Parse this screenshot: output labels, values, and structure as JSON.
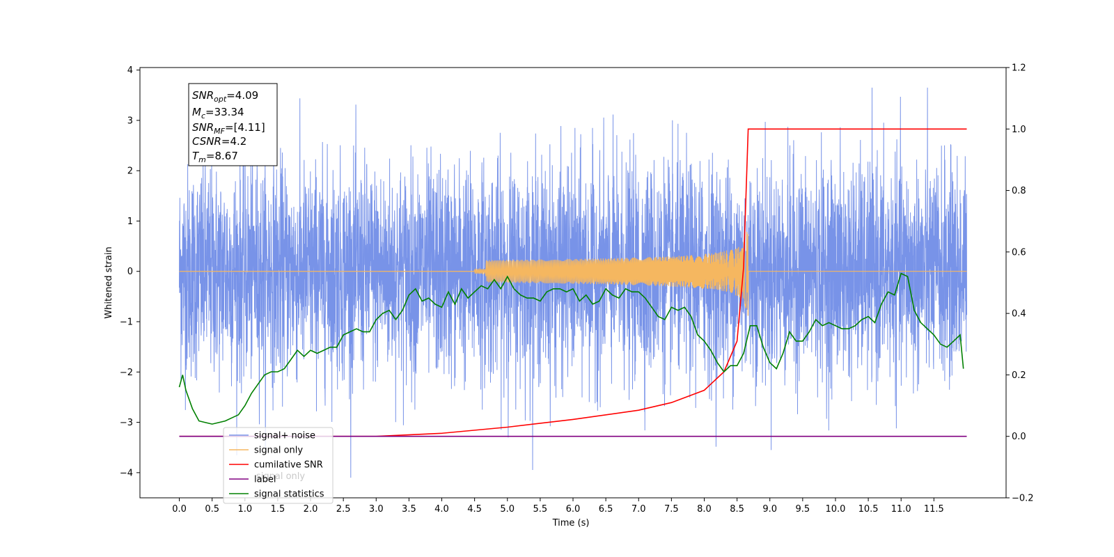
{
  "chart_data": {
    "type": "line",
    "xlabel": "Time (s)",
    "ylabel": "Whitened strain",
    "x_ticks": [
      "0.0",
      "0.5",
      "1.0",
      "1.5",
      "2.0",
      "2.5",
      "3.0",
      "3.5",
      "4.0",
      "4.5",
      "5.0",
      "5.5",
      "6.0",
      "6.5",
      "7.0",
      "7.5",
      "8.0",
      "8.5",
      "9.0",
      "9.5",
      "10.0",
      "10.5",
      "11.0",
      "11.5"
    ],
    "xlim": [
      -0.6,
      12.6
    ],
    "y_left_ticks": [
      "4",
      "3",
      "2",
      "1",
      "0",
      "−1",
      "−2",
      "−3",
      "−4"
    ],
    "ylim_left": [
      -4.5,
      4.05
    ],
    "y_right_ticks": [
      "1.2",
      "1.0",
      "0.8",
      "0.6",
      "0.4",
      "0.2",
      "0.0",
      "−0.2"
    ],
    "ylim_right": [
      -0.2,
      1.2
    ],
    "info_box": {
      "lines": [
        {
          "name": "SNR",
          "sub": "opt",
          "value": "=4.09"
        },
        {
          "name": "M",
          "sub": "c",
          "value": "=33.34"
        },
        {
          "name": "SNR",
          "sub": "MF",
          "value": "=[4.11]"
        },
        {
          "name": "CSNR",
          "sub": "",
          "value": "=4.2"
        },
        {
          "name": "T",
          "sub": "m",
          "value": "=8.67"
        }
      ]
    },
    "series": [
      {
        "name": "signal+ noise",
        "color": "#7893e8",
        "axis": "left",
        "noise_amplitude": 3.2,
        "x_range": [
          0,
          12
        ],
        "description": "dense noise trace"
      },
      {
        "name": "signal only",
        "color": "#f5b760",
        "axis": "left",
        "chirp_peak_time": 8.67,
        "chirp_peak_amplitude": 0.9
      },
      {
        "name": "cumilative SNR",
        "color": "#ff0000",
        "axis": "right",
        "x": [
          0.0,
          3.0,
          4.0,
          5.0,
          6.0,
          7.0,
          7.5,
          8.0,
          8.3,
          8.5,
          8.6,
          8.67,
          12.0
        ],
        "y": [
          0.0,
          0.0,
          0.01,
          0.03,
          0.055,
          0.085,
          0.11,
          0.15,
          0.21,
          0.31,
          0.55,
          1.0,
          1.0
        ]
      },
      {
        "name": "label",
        "color": "#800080",
        "axis": "right",
        "x": [
          0.0,
          12.0
        ],
        "y": [
          0.0,
          0.0
        ]
      },
      {
        "name": "signal statistics",
        "color": "#008000",
        "axis": "right",
        "x": [
          0.0,
          0.05,
          0.1,
          0.2,
          0.3,
          0.4,
          0.5,
          0.6,
          0.7,
          0.8,
          0.9,
          1.0,
          1.1,
          1.2,
          1.3,
          1.4,
          1.5,
          1.6,
          1.7,
          1.8,
          1.9,
          2.0,
          2.1,
          2.2,
          2.3,
          2.4,
          2.5,
          2.6,
          2.7,
          2.8,
          2.9,
          3.0,
          3.1,
          3.2,
          3.3,
          3.4,
          3.5,
          3.6,
          3.7,
          3.8,
          3.9,
          4.0,
          4.1,
          4.2,
          4.3,
          4.4,
          4.5,
          4.6,
          4.7,
          4.8,
          4.9,
          5.0,
          5.1,
          5.2,
          5.3,
          5.4,
          5.5,
          5.6,
          5.7,
          5.8,
          5.9,
          6.0,
          6.1,
          6.2,
          6.3,
          6.4,
          6.5,
          6.6,
          6.7,
          6.8,
          6.9,
          7.0,
          7.1,
          7.2,
          7.3,
          7.4,
          7.5,
          7.6,
          7.7,
          7.8,
          7.9,
          8.0,
          8.1,
          8.2,
          8.3,
          8.4,
          8.5,
          8.6,
          8.7,
          8.8,
          8.9,
          9.0,
          9.1,
          9.2,
          9.3,
          9.4,
          9.5,
          9.6,
          9.7,
          9.8,
          9.9,
          10.0,
          10.1,
          10.2,
          10.3,
          10.4,
          10.5,
          10.6,
          10.7,
          10.8,
          10.9,
          11.0,
          11.1,
          11.2,
          11.3,
          11.4,
          11.5,
          11.6,
          11.7,
          11.8,
          11.9,
          11.95
        ],
        "y": [
          0.16,
          0.2,
          0.15,
          0.09,
          0.05,
          0.045,
          0.04,
          0.045,
          0.05,
          0.06,
          0.07,
          0.1,
          0.14,
          0.17,
          0.2,
          0.21,
          0.21,
          0.22,
          0.25,
          0.28,
          0.26,
          0.28,
          0.27,
          0.28,
          0.29,
          0.29,
          0.33,
          0.34,
          0.35,
          0.34,
          0.34,
          0.38,
          0.4,
          0.41,
          0.38,
          0.41,
          0.46,
          0.48,
          0.44,
          0.45,
          0.43,
          0.42,
          0.47,
          0.43,
          0.48,
          0.45,
          0.47,
          0.49,
          0.48,
          0.51,
          0.48,
          0.52,
          0.48,
          0.46,
          0.45,
          0.45,
          0.44,
          0.47,
          0.48,
          0.48,
          0.47,
          0.48,
          0.44,
          0.46,
          0.43,
          0.44,
          0.48,
          0.46,
          0.45,
          0.48,
          0.47,
          0.47,
          0.45,
          0.42,
          0.39,
          0.38,
          0.42,
          0.41,
          0.42,
          0.39,
          0.33,
          0.31,
          0.28,
          0.24,
          0.21,
          0.23,
          0.23,
          0.27,
          0.36,
          0.36,
          0.29,
          0.24,
          0.22,
          0.27,
          0.34,
          0.31,
          0.31,
          0.34,
          0.38,
          0.36,
          0.37,
          0.36,
          0.35,
          0.35,
          0.36,
          0.38,
          0.39,
          0.37,
          0.43,
          0.47,
          0.46,
          0.53,
          0.52,
          0.41,
          0.37,
          0.35,
          0.33,
          0.3,
          0.29,
          0.31,
          0.33,
          0.22
        ]
      }
    ],
    "legend": {
      "position": "lower-left",
      "entries": [
        {
          "label": "signal+ noise",
          "color": "#7893e8"
        },
        {
          "label": "signal only",
          "color": "#f5b760"
        },
        {
          "label": "cumilative SNR",
          "color": "#ff0000"
        },
        {
          "label": "label",
          "color": "#800080"
        },
        {
          "label": "signal statistics",
          "color": "#008000"
        }
      ],
      "hidden_text": "signal only"
    }
  }
}
